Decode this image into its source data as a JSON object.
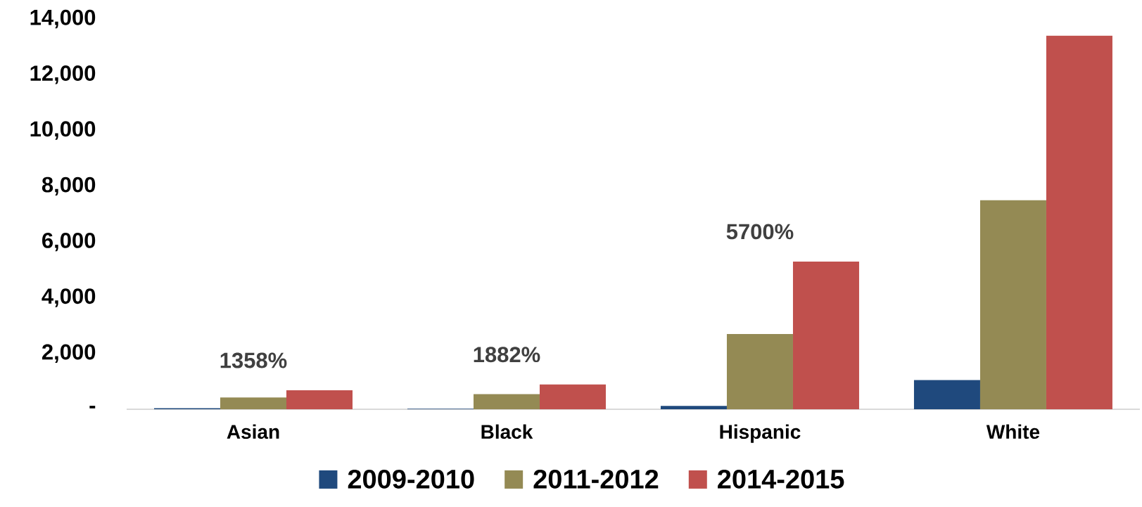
{
  "chart_data": {
    "type": "bar",
    "categories": [
      "Asian",
      "Black",
      "Hispanic",
      "White"
    ],
    "series": [
      {
        "name": "2009-2010",
        "color": "#1f497d",
        "values": [
          40,
          20,
          120,
          1050
        ]
      },
      {
        "name": "2011-2012",
        "color": "#948a54",
        "values": [
          420,
          540,
          2700,
          7500
        ]
      },
      {
        "name": "2014-2015",
        "color": "#c0504d",
        "values": [
          680,
          890,
          5300,
          13400
        ]
      }
    ],
    "ylim": [
      0,
      14000
    ],
    "yticks": [
      {
        "value": 0,
        "label": "-"
      },
      {
        "value": 2000,
        "label": "2,000"
      },
      {
        "value": 4000,
        "label": "4,000"
      },
      {
        "value": 6000,
        "label": "6,000"
      },
      {
        "value": 8000,
        "label": "8,000"
      },
      {
        "value": 10000,
        "label": "10,000"
      },
      {
        "value": 12000,
        "label": "12,000"
      },
      {
        "value": 14000,
        "label": "14,000"
      }
    ],
    "legend": "bottom",
    "annotations": [
      "1358%",
      "1882%",
      "5700%"
    ]
  }
}
